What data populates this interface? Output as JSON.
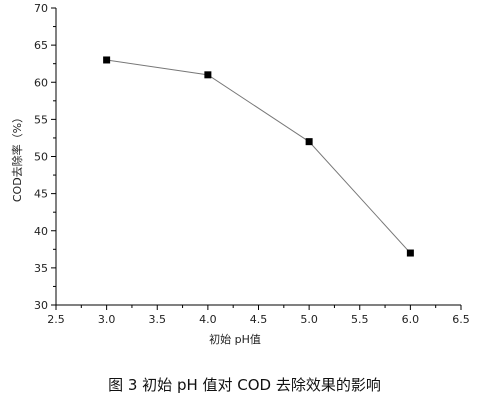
{
  "chart_data": {
    "type": "line",
    "x": [
      3.0,
      4.0,
      5.0,
      6.0
    ],
    "series": [
      {
        "values": [
          63,
          61,
          52,
          37
        ],
        "marker": "square"
      }
    ],
    "xlabel": "初始 pH值",
    "ylabel": "COD去除率（%）",
    "xlim": [
      2.5,
      6.5
    ],
    "ylim": [
      30,
      70
    ],
    "xticks": [
      2.5,
      3.0,
      3.5,
      4.0,
      4.5,
      5.0,
      5.5,
      6.0,
      6.5
    ],
    "xtick_labels": [
      "2.5",
      "3.0",
      "3.5",
      "4.0",
      "4.5",
      "5.0",
      "5.5",
      "6.0",
      "6.5"
    ],
    "yticks": [
      30,
      35,
      40,
      45,
      50,
      55,
      60,
      65,
      70
    ],
    "ytick_labels": [
      "30",
      "35",
      "40",
      "45",
      "50",
      "55",
      "60",
      "65",
      "70"
    ],
    "grid": false,
    "colors": {
      "line": "#777777",
      "marker": "#000000",
      "axis": "#000000"
    }
  },
  "caption": "图 3 初始 pH 值对 COD 去除效果的影响"
}
